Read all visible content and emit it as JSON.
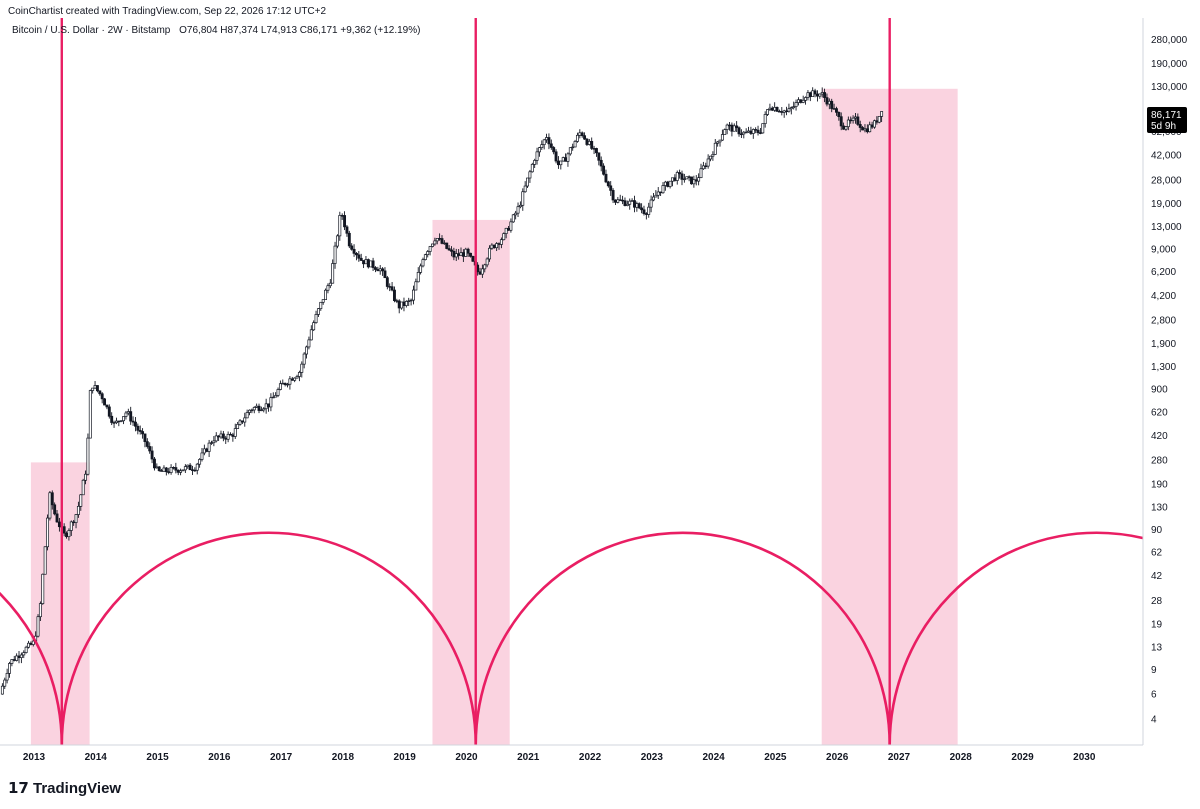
{
  "watermark": "CoinChartist created with TradingView.com, Sep 22, 2026 17:12 UTC+2",
  "legend": {
    "symbol": "Bitcoin / U.S. Dollar · 2W · Bitstamp",
    "ohlc": "O76,804  H87,374  L74,913  C86,171  +9,362 (+12.19%)"
  },
  "price_badge": {
    "price": "86,171",
    "countdown": "5d 9h"
  },
  "branding": {
    "logo_text": "TradingView",
    "logo_mark": "17"
  },
  "colors": {
    "cycle_line": "#e91e63",
    "highlight_fill": "#f8bbd0",
    "candle": "#131722",
    "badge_bg": "#000000",
    "axis_line": "#d1d4dc"
  },
  "chart_data": {
    "type": "candlestick",
    "title": "",
    "interval": "2W",
    "y_scale": "log",
    "ylim": [
      2.6,
      400000
    ],
    "xlim": [
      2012.45,
      2030.95
    ],
    "grid": false,
    "y_ticks": [
      {
        "label": "280,000",
        "v": 280000
      },
      {
        "label": "190,000",
        "v": 190000
      },
      {
        "label": "130,000",
        "v": 130000
      },
      {
        "label": "62,000",
        "v": 62000
      },
      {
        "label": "42,000",
        "v": 42000
      },
      {
        "label": "28,000",
        "v": 28000
      },
      {
        "label": "19,000",
        "v": 19000
      },
      {
        "label": "13,000",
        "v": 13000
      },
      {
        "label": "9,000",
        "v": 9000
      },
      {
        "label": "6,200",
        "v": 6200
      },
      {
        "label": "4,200",
        "v": 4200
      },
      {
        "label": "2,800",
        "v": 2800
      },
      {
        "label": "1,900",
        "v": 1900
      },
      {
        "label": "1,300",
        "v": 1300
      },
      {
        "label": "900",
        "v": 900
      },
      {
        "label": "620",
        "v": 620
      },
      {
        "label": "420",
        "v": 420
      },
      {
        "label": "280",
        "v": 280
      },
      {
        "label": "190",
        "v": 190
      },
      {
        "label": "130",
        "v": 130
      },
      {
        "label": "90",
        "v": 90
      },
      {
        "label": "62",
        "v": 62
      },
      {
        "label": "42",
        "v": 42
      },
      {
        "label": "28",
        "v": 28
      },
      {
        "label": "19",
        "v": 19
      },
      {
        "label": "13",
        "v": 13
      },
      {
        "label": "9",
        "v": 9
      },
      {
        "label": "6",
        "v": 6
      },
      {
        "label": "4",
        "v": 4
      }
    ],
    "x_ticks": [
      "2013",
      "2014",
      "2015",
      "2016",
      "2017",
      "2018",
      "2019",
      "2020",
      "2021",
      "2022",
      "2023",
      "2024",
      "2025",
      "2026",
      "2027",
      "2028",
      "2029",
      "2030"
    ],
    "last_close": 86171,
    "price_path": [
      {
        "t": 2012.45,
        "p": 6
      },
      {
        "t": 2012.6,
        "p": 10
      },
      {
        "t": 2012.8,
        "p": 12
      },
      {
        "t": 2013.0,
        "p": 14
      },
      {
        "t": 2013.1,
        "p": 25
      },
      {
        "t": 2013.25,
        "p": 160
      },
      {
        "t": 2013.35,
        "p": 110
      },
      {
        "t": 2013.5,
        "p": 80
      },
      {
        "t": 2013.7,
        "p": 120
      },
      {
        "t": 2013.85,
        "p": 250
      },
      {
        "t": 2013.92,
        "p": 1000
      },
      {
        "t": 2014.1,
        "p": 800
      },
      {
        "t": 2014.3,
        "p": 500
      },
      {
        "t": 2014.5,
        "p": 620
      },
      {
        "t": 2014.8,
        "p": 380
      },
      {
        "t": 2015.0,
        "p": 230
      },
      {
        "t": 2015.3,
        "p": 240
      },
      {
        "t": 2015.6,
        "p": 250
      },
      {
        "t": 2015.9,
        "p": 400
      },
      {
        "t": 2016.2,
        "p": 420
      },
      {
        "t": 2016.5,
        "p": 650
      },
      {
        "t": 2016.8,
        "p": 700
      },
      {
        "t": 2017.0,
        "p": 950
      },
      {
        "t": 2017.3,
        "p": 1200
      },
      {
        "t": 2017.5,
        "p": 2500
      },
      {
        "t": 2017.8,
        "p": 5500
      },
      {
        "t": 2017.97,
        "p": 17000
      },
      {
        "t": 2018.1,
        "p": 10000
      },
      {
        "t": 2018.3,
        "p": 7500
      },
      {
        "t": 2018.6,
        "p": 6500
      },
      {
        "t": 2018.9,
        "p": 3500
      },
      {
        "t": 2019.1,
        "p": 3800
      },
      {
        "t": 2019.3,
        "p": 8000
      },
      {
        "t": 2019.5,
        "p": 11000
      },
      {
        "t": 2019.8,
        "p": 8000
      },
      {
        "t": 2020.0,
        "p": 8500
      },
      {
        "t": 2020.2,
        "p": 6000
      },
      {
        "t": 2020.4,
        "p": 9200
      },
      {
        "t": 2020.6,
        "p": 11000
      },
      {
        "t": 2020.85,
        "p": 18000
      },
      {
        "t": 2021.1,
        "p": 40000
      },
      {
        "t": 2021.3,
        "p": 58000
      },
      {
        "t": 2021.5,
        "p": 35000
      },
      {
        "t": 2021.6,
        "p": 40000
      },
      {
        "t": 2021.85,
        "p": 62000
      },
      {
        "t": 2022.1,
        "p": 42000
      },
      {
        "t": 2022.4,
        "p": 20000
      },
      {
        "t": 2022.7,
        "p": 19000
      },
      {
        "t": 2022.9,
        "p": 16500
      },
      {
        "t": 2023.1,
        "p": 23000
      },
      {
        "t": 2023.4,
        "p": 30000
      },
      {
        "t": 2023.7,
        "p": 27000
      },
      {
        "t": 2023.95,
        "p": 42000
      },
      {
        "t": 2024.2,
        "p": 68000
      },
      {
        "t": 2024.5,
        "p": 60000
      },
      {
        "t": 2024.75,
        "p": 62000
      },
      {
        "t": 2024.9,
        "p": 95000
      },
      {
        "t": 2025.2,
        "p": 85000
      },
      {
        "t": 2025.5,
        "p": 115000
      },
      {
        "t": 2025.75,
        "p": 115000
      },
      {
        "t": 2025.9,
        "p": 95000
      },
      {
        "t": 2026.1,
        "p": 68000
      },
      {
        "t": 2026.3,
        "p": 75000
      },
      {
        "t": 2026.45,
        "p": 64000
      },
      {
        "t": 2026.6,
        "p": 70000
      },
      {
        "t": 2026.72,
        "p": 86171
      }
    ],
    "cycle_lines": [
      2013.45,
      2020.15,
      2026.85
    ],
    "highlight_zones": [
      {
        "x0": 2012.95,
        "x1": 2013.9,
        "y_top": 270
      },
      {
        "x0": 2019.45,
        "x1": 2020.7,
        "y_top": 14500
      },
      {
        "x0": 2025.75,
        "x1": 2027.95,
        "y_top": 125000
      }
    ],
    "cycle_arcs": {
      "nodes": [
        2013.45,
        2020.15,
        2026.85
      ],
      "peak_value": 85,
      "left_edge_value": 28
    }
  }
}
